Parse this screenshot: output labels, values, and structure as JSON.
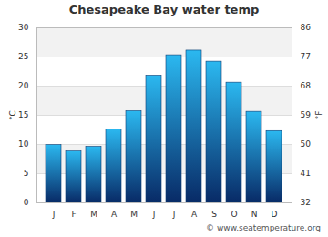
{
  "chart_data": {
    "type": "bar",
    "title": "Chesapeake Bay water temp",
    "caption": "© www.seatemperature.org",
    "categories": [
      "J",
      "F",
      "M",
      "A",
      "M",
      "J",
      "J",
      "A",
      "S",
      "O",
      "N",
      "D"
    ],
    "values": [
      9.9,
      8.8,
      9.6,
      12.6,
      15.7,
      21.8,
      25.3,
      26.1,
      24.2,
      20.6,
      15.6,
      12.3
    ],
    "color": "#2bb8f0",
    "ylabel": "°C",
    "ylim": [
      0,
      30
    ],
    "yticks": [
      0,
      5,
      10,
      15,
      20,
      25,
      30
    ],
    "y2label": "°F",
    "y2lim": [
      32,
      86
    ],
    "y2ticks": [
      32,
      41,
      50,
      59,
      68,
      77,
      86
    ],
    "grid": true
  }
}
